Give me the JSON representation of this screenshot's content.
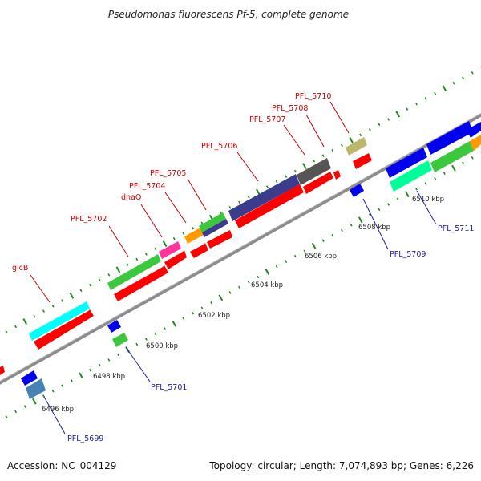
{
  "title": "Pseudomonas fluorescens Pf-5, complete genome",
  "accession_text": "Accession: NC_004129",
  "summary_text": "Topology: circular; Length: 7,074,893 bp; Genes: 6,226",
  "colors": {
    "backbone": "#8c8c8c",
    "tick": "#1e8a1e",
    "label_forward": "#cc0000",
    "label_reverse": "#1a1aa8",
    "red": "#ff0000",
    "green": "#3cc83c",
    "cyan": "#00ffff",
    "magenta": "#ff3399",
    "orange": "#ff9900",
    "navy": "#3c3c8c",
    "gray": "#555555",
    "khaki": "#bdb76b",
    "blue": "#0000ee",
    "spring": "#00ff99",
    "steel": "#4682b4"
  },
  "scale_labels": [
    "6496 kbp",
    "6498 kbp",
    "6500 kbp",
    "6502 kbp",
    "6504 kbp",
    "6506 kbp",
    "6508 kbp",
    "6510 kbp"
  ],
  "gene_labels": {
    "glcB": "glcB",
    "PFL_5702": "PFL_5702",
    "dnaQ": "dnaQ",
    "PFL_5704": "PFL_5704",
    "PFL_5705": "PFL_5705",
    "PFL_5706": "PFL_5706",
    "PFL_5707": "PFL_5707",
    "PFL_5708": "PFL_5708",
    "PFL_5710": "PFL_5710",
    "PFL_5699": "PFL_5699",
    "PFL_5701": "PFL_5701",
    "PFL_5709": "PFL_5709",
    "PFL_5711": "PFL_5711"
  }
}
